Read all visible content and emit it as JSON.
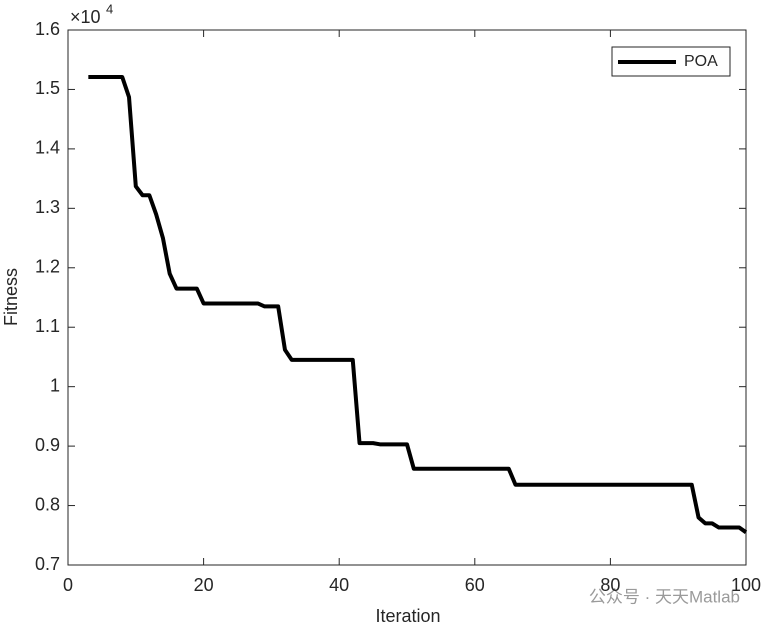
{
  "chart_data": {
    "type": "line",
    "xlabel": "Iteration",
    "ylabel": "Fitness",
    "y_multiplier": {
      "base": "×10",
      "exponent": "4"
    },
    "x": [
      3,
      8,
      9,
      10,
      11,
      12,
      13,
      14,
      15,
      16,
      19,
      20,
      28,
      29,
      31,
      32,
      33,
      42,
      43,
      45,
      46,
      50,
      51,
      65,
      66,
      92,
      93,
      94,
      95,
      96,
      99,
      100
    ],
    "series": [
      {
        "name": "POA",
        "color": "#000000",
        "values": [
          1.521,
          1.521,
          1.487,
          1.337,
          1.322,
          1.322,
          1.29,
          1.25,
          1.19,
          1.165,
          1.165,
          1.14,
          1.14,
          1.135,
          1.135,
          1.062,
          1.045,
          1.045,
          0.905,
          0.905,
          0.903,
          0.903,
          0.862,
          0.862,
          0.835,
          0.835,
          0.78,
          0.77,
          0.77,
          0.763,
          0.763,
          0.755
        ]
      }
    ],
    "xlim": [
      0,
      100
    ],
    "ylim": [
      0.7,
      1.6
    ],
    "xticks": [
      0,
      20,
      40,
      60,
      80,
      100
    ],
    "yticks": [
      0.7,
      0.8,
      0.9,
      1,
      1.1,
      1.2,
      1.3,
      1.4,
      1.5,
      1.6
    ],
    "grid": false,
    "legend": "top-right",
    "watermark": "公众号 · 天天Matlab"
  }
}
